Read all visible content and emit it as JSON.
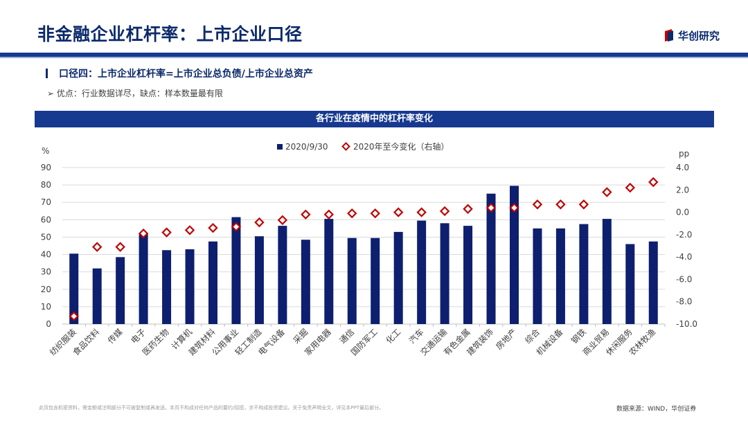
{
  "page": {
    "title": "非金融企业杠杆率：上市企业口径",
    "logo_text": "华创研究",
    "subheading": "口径四：上市企业杠杆率=上市企业总负债/上市企业总资产",
    "bullet_text": "优点：行业数据详尽，缺点：样本数量最有限",
    "bullet_glyph": "➢",
    "footnote": "此页包含机密资料，需金额或注明部分不可被复制或再发送。本页不构成对任何产品的要约/招揽，亦不构成投资建议。关于免责声明全文，详见本PPT最后部分。",
    "source": "数据来源：WIND，华创证券"
  },
  "colors": {
    "navy": "#0b2a6b",
    "bar": "#0d1f6e",
    "diamond": "#c00000",
    "header_band": "#17398f"
  },
  "chart_data": {
    "type": "bar",
    "title": "各行业在疫情中的杠杆率变化",
    "ylabel_left": "%",
    "ylabel_right": "pp",
    "ylim_left": [
      0,
      90
    ],
    "ylim_right": [
      -10.0,
      4.0
    ],
    "yticks_left": [
      "0",
      "10",
      "20",
      "30",
      "40",
      "50",
      "60",
      "70",
      "80",
      "90"
    ],
    "yticks_right": [
      "-10.0",
      "-8.0",
      "-6.0",
      "-4.0",
      "-2.0",
      "0.0",
      "2.0",
      "4.0"
    ],
    "categories": [
      "纺织服装",
      "食品饮料",
      "传媒",
      "电子",
      "医药生物",
      "计算机",
      "建筑材料",
      "公用事业",
      "轻工制造",
      "电气设备",
      "采掘",
      "家用电器",
      "通信",
      "国防军工",
      "化工",
      "汽车",
      "交通运输",
      "有色金属",
      "建筑装饰",
      "房地产",
      "综合",
      "机械设备",
      "钢铁",
      "商业贸易",
      "休闲服务",
      "农林牧渔"
    ],
    "series": [
      {
        "name": "2020/9/30",
        "axis": "left",
        "marker": "bar",
        "values": [
          40.5,
          32.0,
          38.5,
          52.0,
          42.5,
          43.0,
          47.5,
          61.5,
          50.5,
          56.5,
          48.5,
          60.5,
          49.5,
          49.5,
          53.0,
          59.5,
          58.0,
          56.5,
          75.0,
          79.5,
          55.0,
          55.0,
          57.5,
          60.5,
          46.0,
          47.5
        ]
      },
      {
        "name": "2020年至今变化（右轴）",
        "axis": "right",
        "marker": "diamond",
        "values": [
          -9.3,
          -3.1,
          -3.1,
          -1.9,
          -1.8,
          -1.6,
          -1.4,
          -1.3,
          -0.9,
          -0.7,
          -0.2,
          -0.2,
          -0.1,
          -0.1,
          0.0,
          0.0,
          0.1,
          0.3,
          0.4,
          0.4,
          0.7,
          0.7,
          0.7,
          1.8,
          2.2,
          2.7
        ]
      }
    ]
  }
}
